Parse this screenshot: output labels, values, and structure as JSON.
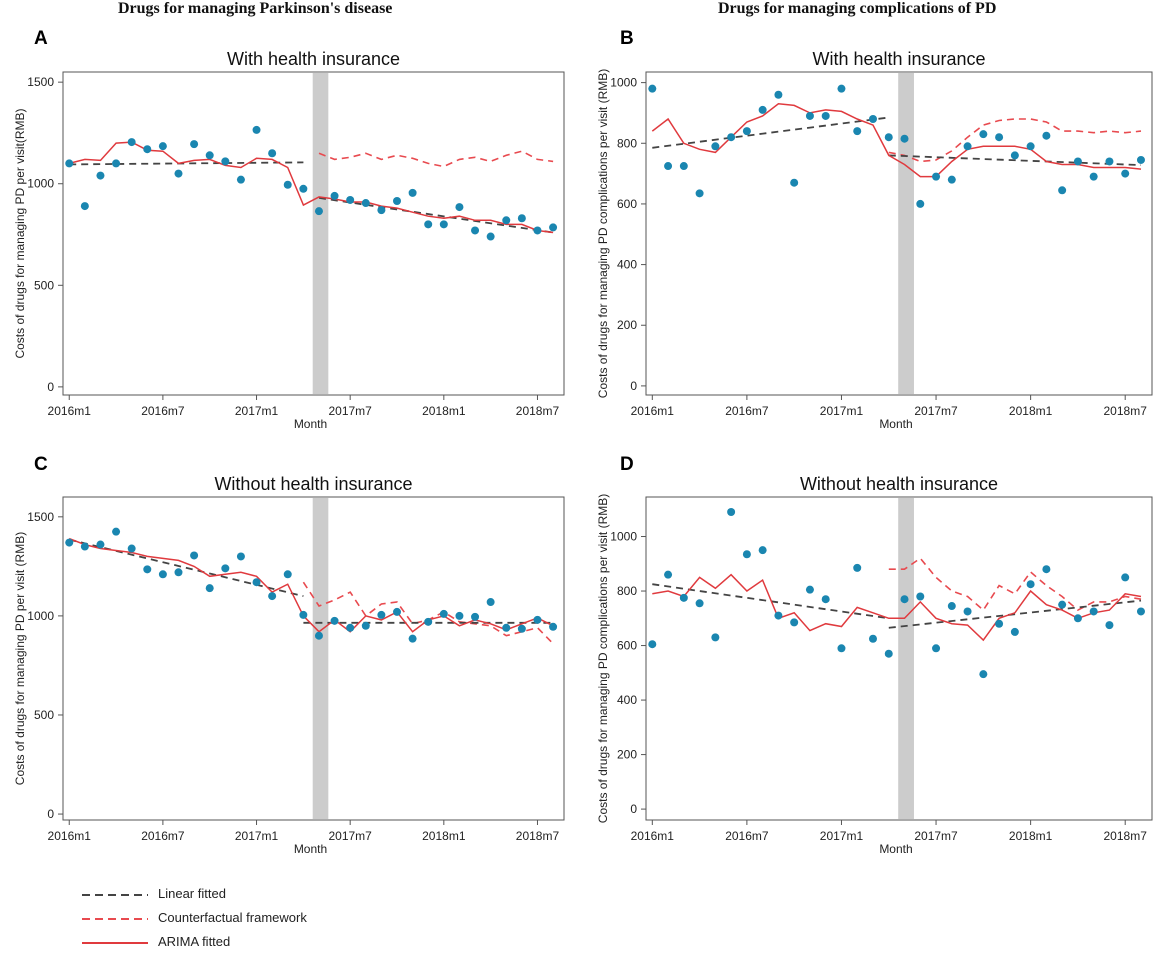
{
  "figure": {
    "column_titles": [
      "Drugs for managing Parkinson's disease",
      "Drugs for managing complications of PD"
    ],
    "legend": [
      {
        "label": "Linear fitted",
        "style": "dashed",
        "color": "#444444"
      },
      {
        "label": "Counterfactual framework",
        "style": "dashed",
        "color": "#e84a4f"
      },
      {
        "label": "ARIMA fitted",
        "style": "solid",
        "color": "#e03a3e"
      }
    ],
    "colors": {
      "points": "#1a86b0",
      "linear": "#444444",
      "counterfactual": "#e84a4f",
      "arima": "#e03a3e",
      "intervention": "#cccccc",
      "axis": "#555555"
    }
  },
  "chart_data": [
    {
      "panel": "A",
      "type": "line",
      "title": "With health insurance",
      "xlabel": "Month",
      "ylabel": "Costs of drugs for managing PD per visit(RMB)",
      "x_ticks": [
        {
          "pos": 0,
          "label": "2016m1"
        },
        {
          "pos": 6,
          "label": "2016m7"
        },
        {
          "pos": 12,
          "label": "2017m1"
        },
        {
          "pos": 18,
          "label": "2017m7"
        },
        {
          "pos": 24,
          "label": "2018m1"
        },
        {
          "pos": 30,
          "label": "2018m7"
        }
      ],
      "y_ticks": [
        0,
        500,
        1000,
        1500
      ],
      "xlim": [
        -0.4,
        31.7
      ],
      "ylim": [
        -40,
        1550
      ],
      "intervention_x": [
        15.6,
        16.6
      ],
      "observed": [
        1100,
        890,
        1040,
        1100,
        1205,
        1170,
        1185,
        1050,
        1195,
        1140,
        1110,
        1020,
        1265,
        1150,
        995,
        975,
        865,
        940,
        920,
        905,
        870,
        915,
        955,
        800,
        800,
        885,
        770,
        740,
        820,
        830,
        770,
        785
      ],
      "arima": [
        1100,
        1120,
        1115,
        1200,
        1205,
        1165,
        1160,
        1100,
        1115,
        1120,
        1090,
        1080,
        1125,
        1120,
        1080,
        895,
        935,
        925,
        910,
        910,
        890,
        880,
        860,
        840,
        830,
        840,
        820,
        820,
        800,
        800,
        770,
        760
      ],
      "linear_pre": {
        "x": [
          0,
          15
        ],
        "y": [
          1095,
          1105
        ]
      },
      "linear_post": {
        "x": [
          16,
          31
        ],
        "y": [
          930,
          760
        ]
      },
      "counterfactual": {
        "x": [
          16,
          17,
          18,
          19,
          20,
          21,
          22,
          23,
          24,
          25,
          26,
          27,
          28,
          29,
          30,
          31
        ],
        "y": [
          1150,
          1120,
          1130,
          1150,
          1120,
          1140,
          1125,
          1100,
          1085,
          1120,
          1130,
          1110,
          1140,
          1160,
          1120,
          1110
        ]
      }
    },
    {
      "panel": "B",
      "type": "line",
      "title": "With health insurance",
      "xlabel": "Month",
      "ylabel": "Costs of drugs for managing PD complications per visit (RMB)",
      "x_ticks": [
        {
          "pos": 0,
          "label": "2016m1"
        },
        {
          "pos": 6,
          "label": "2016m7"
        },
        {
          "pos": 12,
          "label": "2017m1"
        },
        {
          "pos": 18,
          "label": "2017m7"
        },
        {
          "pos": 24,
          "label": "2018m1"
        },
        {
          "pos": 30,
          "label": "2018m7"
        }
      ],
      "y_ticks": [
        0,
        200,
        400,
        600,
        800,
        1000
      ],
      "xlim": [
        -0.4,
        31.7
      ],
      "ylim": [
        -30,
        1035
      ],
      "intervention_x": [
        15.6,
        16.6
      ],
      "observed": [
        980,
        725,
        725,
        635,
        790,
        820,
        840,
        910,
        960,
        670,
        890,
        890,
        980,
        840,
        880,
        820,
        815,
        600,
        690,
        680,
        790,
        830,
        820,
        760,
        790,
        825,
        645,
        740,
        690,
        740,
        700,
        745
      ],
      "arima": [
        840,
        880,
        800,
        780,
        770,
        820,
        870,
        890,
        930,
        925,
        900,
        910,
        905,
        880,
        860,
        760,
        730,
        690,
        690,
        740,
        780,
        790,
        790,
        790,
        780,
        740,
        730,
        730,
        720,
        720,
        720,
        715
      ],
      "linear_pre": {
        "x": [
          0,
          15
        ],
        "y": [
          785,
          885
        ]
      },
      "linear_post": {
        "x": [
          15,
          31
        ],
        "y": [
          760,
          728
        ]
      },
      "counterfactual": {
        "x": [
          15,
          16,
          17,
          18,
          19,
          20,
          21,
          22,
          23,
          24,
          25,
          26,
          27,
          28,
          29,
          30,
          31
        ],
        "y": [
          770,
          760,
          740,
          745,
          775,
          820,
          860,
          875,
          880,
          880,
          870,
          840,
          840,
          835,
          840,
          835,
          840
        ]
      }
    },
    {
      "panel": "C",
      "type": "line",
      "title": "Without health insurance",
      "xlabel": "Month",
      "ylabel": "Costs of drugs for managing PD per visit (RMB)",
      "x_ticks": [
        {
          "pos": 0,
          "label": "2016m1"
        },
        {
          "pos": 6,
          "label": "2016m7"
        },
        {
          "pos": 12,
          "label": "2017m1"
        },
        {
          "pos": 18,
          "label": "2017m7"
        },
        {
          "pos": 24,
          "label": "2018m1"
        },
        {
          "pos": 30,
          "label": "2018m7"
        }
      ],
      "y_ticks": [
        0,
        500,
        1000,
        1500
      ],
      "xlim": [
        -0.4,
        31.7
      ],
      "ylim": [
        -30,
        1600
      ],
      "intervention_x": [
        15.6,
        16.6
      ],
      "observed": [
        1370,
        1350,
        1360,
        1425,
        1340,
        1235,
        1210,
        1220,
        1305,
        1140,
        1240,
        1300,
        1170,
        1100,
        1210,
        1005,
        900,
        975,
        940,
        950,
        1005,
        1020,
        885,
        970,
        1010,
        1000,
        995,
        1070,
        940,
        935,
        980,
        945
      ],
      "arima": [
        1390,
        1360,
        1340,
        1330,
        1320,
        1300,
        1290,
        1280,
        1250,
        1200,
        1210,
        1220,
        1200,
        1120,
        1160,
        1000,
        920,
        980,
        920,
        1000,
        980,
        1020,
        920,
        980,
        1000,
        950,
        980,
        960,
        930,
        960,
        990,
        950
      ],
      "linear_pre": {
        "x": [
          0,
          15
        ],
        "y": [
          1385,
          1100
        ]
      },
      "linear_post": {
        "x": [
          15,
          31
        ],
        "y": [
          965,
          965
        ]
      },
      "counterfactual": {
        "x": [
          15,
          16,
          17,
          18,
          19,
          20,
          21,
          22,
          23,
          24,
          25,
          26,
          27,
          28,
          29,
          30,
          31
        ],
        "y": [
          1170,
          1050,
          1080,
          1120,
          1000,
          1060,
          1070,
          960,
          980,
          1020,
          970,
          960,
          950,
          900,
          920,
          940,
          860
        ]
      }
    },
    {
      "panel": "D",
      "type": "line",
      "title": "Without health insurance",
      "xlabel": "Month",
      "ylabel": "Costs of drugs for managing PD complications per visit (RMB)",
      "x_ticks": [
        {
          "pos": 0,
          "label": "2016m1"
        },
        {
          "pos": 6,
          "label": "2016m7"
        },
        {
          "pos": 12,
          "label": "2017m1"
        },
        {
          "pos": 18,
          "label": "2017m7"
        },
        {
          "pos": 24,
          "label": "2018m1"
        },
        {
          "pos": 30,
          "label": "2018m7"
        }
      ],
      "y_ticks": [
        0,
        200,
        400,
        600,
        800,
        1000
      ],
      "xlim": [
        -0.4,
        31.7
      ],
      "ylim": [
        -40,
        1145
      ],
      "intervention_x": [
        15.6,
        16.6
      ],
      "observed": [
        605,
        860,
        775,
        755,
        630,
        1090,
        935,
        950,
        710,
        685,
        805,
        770,
        590,
        885,
        625,
        570,
        770,
        780,
        590,
        745,
        725,
        495,
        680,
        650,
        825,
        880,
        750,
        700,
        725,
        675,
        850,
        725
      ],
      "arima": [
        790,
        800,
        780,
        850,
        810,
        860,
        800,
        840,
        700,
        720,
        655,
        680,
        670,
        740,
        720,
        700,
        700,
        760,
        700,
        680,
        675,
        620,
        700,
        720,
        800,
        750,
        730,
        700,
        720,
        730,
        790,
        780
      ],
      "linear_pre": {
        "x": [
          0,
          15
        ],
        "y": [
          825,
          700
        ]
      },
      "linear_post": {
        "x": [
          15,
          31
        ],
        "y": [
          665,
          765
        ]
      },
      "counterfactual": {
        "x": [
          15,
          16,
          17,
          18,
          19,
          20,
          21,
          22,
          23,
          24,
          25,
          26,
          27,
          28,
          29,
          30,
          31
        ],
        "y": [
          880,
          880,
          920,
          850,
          800,
          780,
          730,
          820,
          790,
          870,
          820,
          780,
          730,
          760,
          760,
          780,
          770
        ]
      }
    }
  ]
}
